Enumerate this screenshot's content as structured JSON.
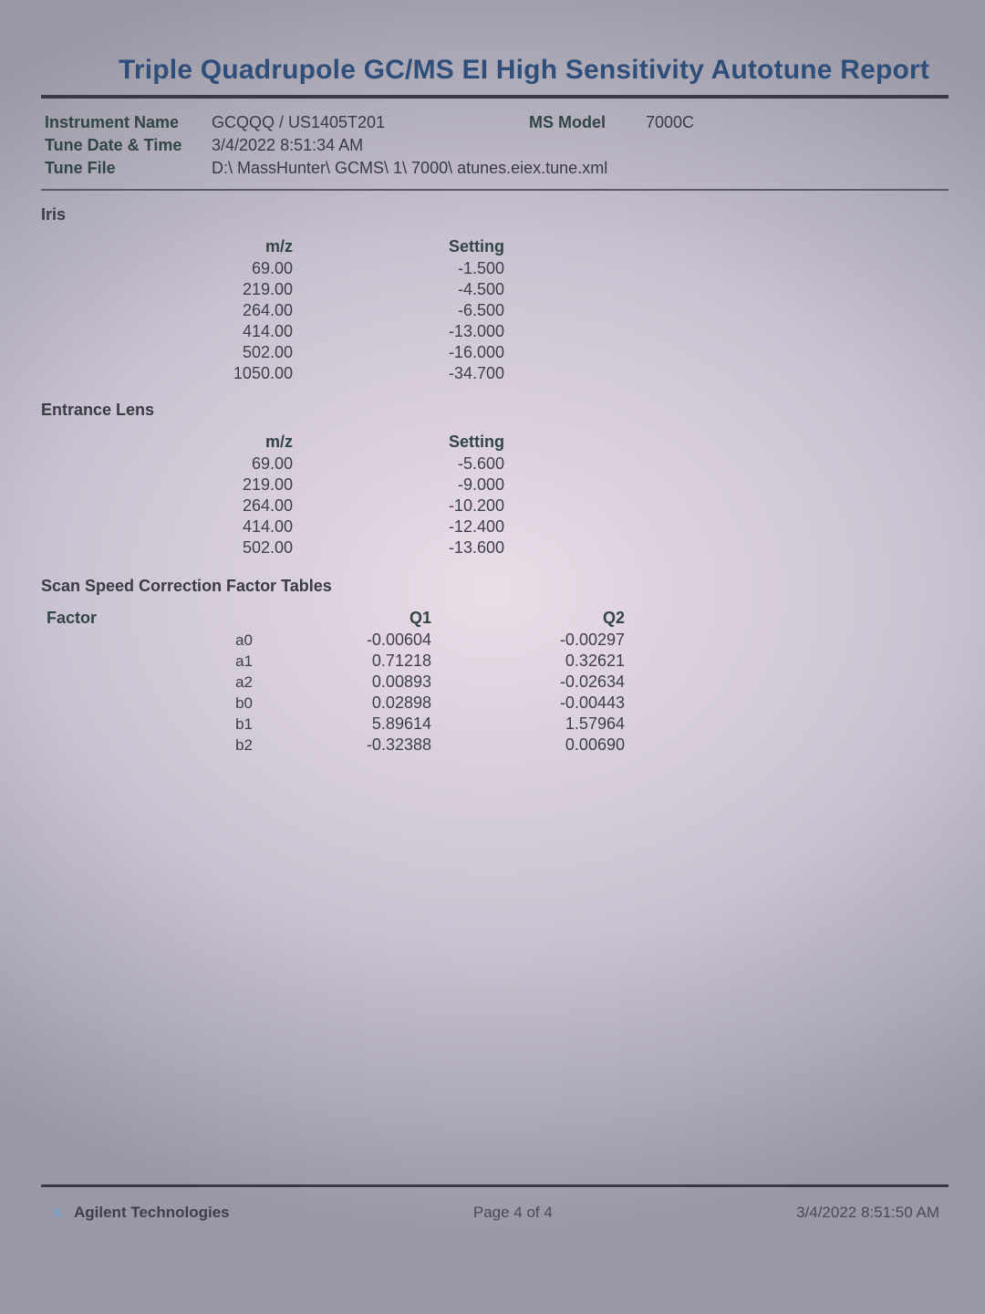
{
  "title": "Triple Quadrupole GC/MS EI High Sensitivity Autotune Report",
  "meta": {
    "instrument_name_label": "Instrument Name",
    "instrument_name": "GCQQQ / US1405T201",
    "ms_model_label": "MS Model",
    "ms_model": "7000C",
    "tune_datetime_label": "Tune Date & Time",
    "tune_datetime": "3/4/2022 8:51:34 AM",
    "tune_file_label": "Tune File",
    "tune_file": "D:\\ MassHunter\\ GCMS\\ 1\\ 7000\\ atunes.eiex.tune.xml"
  },
  "iris": {
    "heading": "Iris",
    "col_mz": "m/z",
    "col_setting": "Setting",
    "rows": [
      {
        "mz": "69.00",
        "setting": "-1.500"
      },
      {
        "mz": "219.00",
        "setting": "-4.500"
      },
      {
        "mz": "264.00",
        "setting": "-6.500"
      },
      {
        "mz": "414.00",
        "setting": "-13.000"
      },
      {
        "mz": "502.00",
        "setting": "-16.000"
      },
      {
        "mz": "1050.00",
        "setting": "-34.700"
      }
    ]
  },
  "entrance": {
    "heading": "Entrance Lens",
    "col_mz": "m/z",
    "col_setting": "Setting",
    "rows": [
      {
        "mz": "69.00",
        "setting": "-5.600"
      },
      {
        "mz": "219.00",
        "setting": "-9.000"
      },
      {
        "mz": "264.00",
        "setting": "-10.200"
      },
      {
        "mz": "414.00",
        "setting": "-12.400"
      },
      {
        "mz": "502.00",
        "setting": "-13.600"
      }
    ]
  },
  "scan": {
    "heading": "Scan Speed Correction Factor Tables",
    "factor_label": "Factor",
    "q1_label": "Q1",
    "q2_label": "Q2",
    "rows": [
      {
        "f": "a0",
        "q1": "-0.00604",
        "q2": "-0.00297"
      },
      {
        "f": "a1",
        "q1": "0.71218",
        "q2": "0.32621"
      },
      {
        "f": "a2",
        "q1": "0.00893",
        "q2": "-0.02634"
      },
      {
        "f": "b0",
        "q1": "0.02898",
        "q2": "-0.00443"
      },
      {
        "f": "b1",
        "q1": "5.89614",
        "q2": "1.57964"
      },
      {
        "f": "b2",
        "q1": "-0.32388",
        "q2": "0.00690"
      }
    ]
  },
  "footer": {
    "brand": "Agilent Technologies",
    "page": "Page 4 of 4",
    "timestamp": "3/4/2022 8:51:50 AM"
  },
  "style": {
    "title_color": "#2f4f7a",
    "text_color": "#3a3a46",
    "rule_color": "#3a3a46",
    "font_family": "Segoe UI",
    "title_fontsize_pt": 22,
    "body_fontsize_pt": 13
  }
}
